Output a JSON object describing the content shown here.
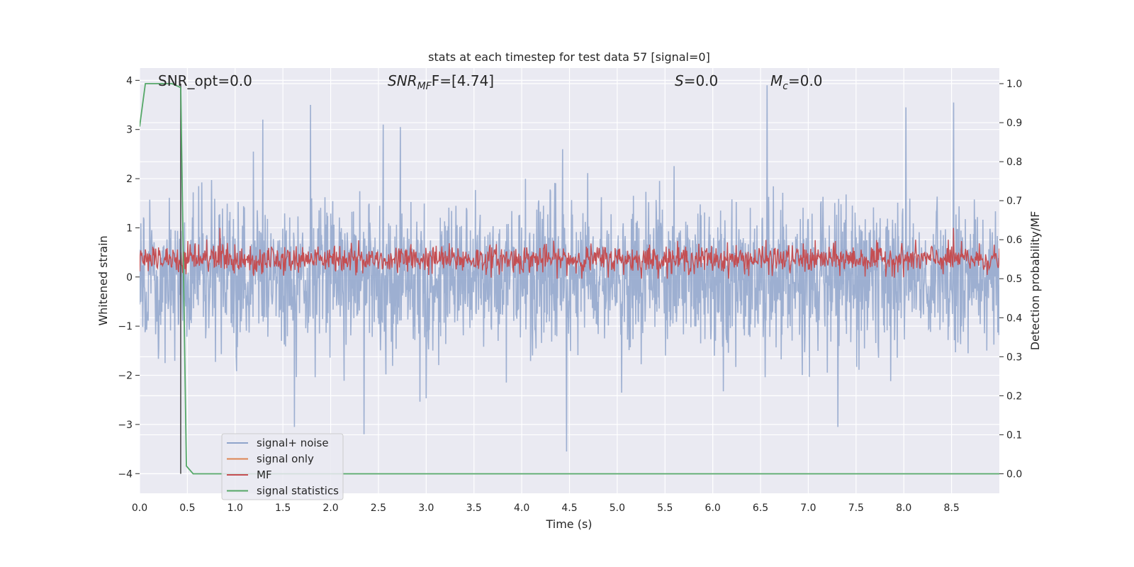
{
  "chart_data": {
    "type": "line",
    "title": "stats at each timestep for test data 57 [signal=0]",
    "xlabel": "Time (s)",
    "ylabel_left": "Whitened strain",
    "ylabel_right": "Detection probability/MF",
    "xlim": [
      0.0,
      9.0
    ],
    "ylim_left": [
      -4.4,
      4.25
    ],
    "ylim_right": [
      -0.05,
      1.04
    ],
    "x_ticks": [
      "0.0",
      "0.5",
      "1.0",
      "1.5",
      "2.0",
      "2.5",
      "3.0",
      "3.5",
      "4.0",
      "4.5",
      "5.0",
      "5.5",
      "6.0",
      "6.5",
      "7.0",
      "7.5",
      "8.0",
      "8.5"
    ],
    "y_left_ticks": [
      "4",
      "3",
      "2",
      "1",
      "0",
      "−1",
      "−2",
      "−3",
      "−4"
    ],
    "y_right_ticks": [
      "1.0",
      "0.9",
      "0.8",
      "0.7",
      "0.6",
      "0.5",
      "0.4",
      "0.3",
      "0.2",
      "0.1",
      "0.0"
    ],
    "grid": true,
    "legend_position": "lower-left",
    "annotations": {
      "snr_opt": "SNR_opt=0.0",
      "snr_mf_main": "SNR",
      "snr_mf_sub": "MF",
      "snr_mf_value": "F=[4.74]",
      "s_main": "S",
      "s_value": "=0.0",
      "mc_main": "M",
      "mc_sub": "c",
      "mc_value": "=0.0"
    },
    "series": [
      {
        "name": "signal+ noise",
        "color": "#8fa4cb",
        "axis": "left",
        "kind": "whitened noise, roughly symmetric about 0",
        "noise_std": 0.75,
        "x_range": [
          0.0,
          9.0
        ],
        "peaks": [
          {
            "x": 1.19,
            "y": 2.55
          },
          {
            "x": 1.29,
            "y": 3.2
          },
          {
            "x": 1.79,
            "y": 3.5
          },
          {
            "x": 2.55,
            "y": 3.1
          },
          {
            "x": 2.73,
            "y": 3.05
          },
          {
            "x": 4.43,
            "y": 2.6
          },
          {
            "x": 6.57,
            "y": 3.9
          },
          {
            "x": 8.02,
            "y": 3.45
          },
          {
            "x": 8.52,
            "y": 3.55
          },
          {
            "x": 1.62,
            "y": -3.05
          },
          {
            "x": 2.35,
            "y": -3.2
          },
          {
            "x": 4.47,
            "y": -3.55
          },
          {
            "x": 7.31,
            "y": -3.05
          }
        ]
      },
      {
        "name": "signal only",
        "color": "#dd8452",
        "axis": "left",
        "values": []
      },
      {
        "name": "MF",
        "color": "#c44e52",
        "axis": "right",
        "kind": "noisy band",
        "mean": 0.55,
        "range": [
          0.5,
          0.6
        ],
        "peaks": [
          {
            "x": 0.84,
            "y": 0.63
          },
          {
            "x": 8.52,
            "y": 0.63
          }
        ]
      },
      {
        "name": "signal statistics",
        "color": "#55a868",
        "axis": "right",
        "x": [
          0.0,
          0.06,
          0.34,
          0.43,
          0.49,
          0.56,
          9.0
        ],
        "y": [
          0.89,
          1.0,
          1.0,
          0.99,
          0.02,
          0.0,
          0.0
        ]
      }
    ],
    "vertical_marker": {
      "x": 0.43,
      "color": "#4c4c4c"
    }
  }
}
